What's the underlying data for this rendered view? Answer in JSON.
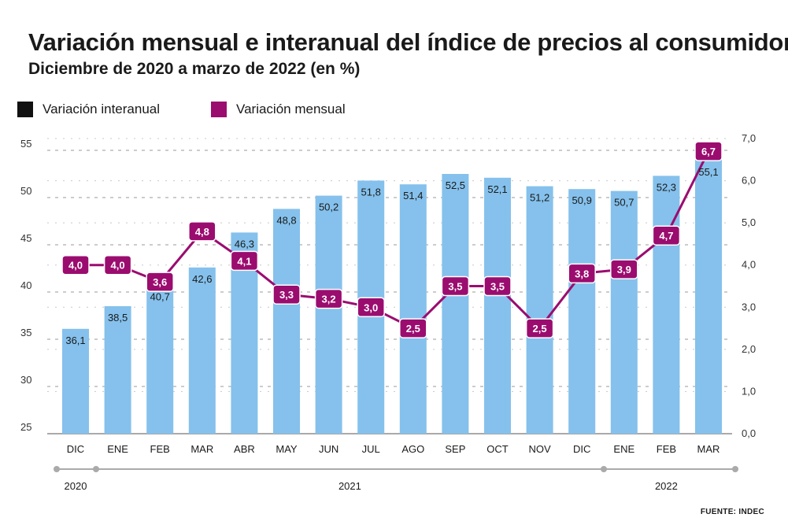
{
  "title": "Variación mensual e interanual del índice de precios al consumidor",
  "subtitle": "Diciembre de 2020 a marzo de 2022 (en %)",
  "legend": [
    {
      "label": "Variación interanual",
      "color": "#111111"
    },
    {
      "label": "Variación mensual",
      "color": "#9b0c6f"
    }
  ],
  "source": "FUENTE: INDEC",
  "colors": {
    "bar": "#85c1ec",
    "line": "#9b0c6f",
    "grid": "#9a9a9a",
    "timeline": "#aaaaaa"
  },
  "chart_data": {
    "type": "bar+line",
    "categories": [
      "DIC",
      "ENE",
      "FEB",
      "MAR",
      "ABR",
      "MAY",
      "JUN",
      "JUL",
      "AGO",
      "SEP",
      "OCT",
      "NOV",
      "DIC",
      "ENE",
      "FEB",
      "MAR"
    ],
    "series": [
      {
        "name": "Variación interanual",
        "type": "bar",
        "axis": "left",
        "values": [
          36.1,
          38.5,
          40.7,
          42.6,
          46.3,
          48.8,
          50.2,
          51.8,
          51.4,
          52.5,
          52.1,
          51.2,
          50.9,
          50.7,
          52.3,
          55.1
        ],
        "labels": [
          "36,1",
          "38,5",
          "40,7",
          "42,6",
          "46,3",
          "48,8",
          "50,2",
          "51,8",
          "51,4",
          "52,5",
          "52,1",
          "51,2",
          "50,9",
          "50,7",
          "52,3",
          "55,1"
        ]
      },
      {
        "name": "Variación mensual",
        "type": "line",
        "axis": "right",
        "values": [
          4.0,
          4.0,
          3.6,
          4.8,
          4.1,
          3.3,
          3.2,
          3.0,
          2.5,
          3.5,
          3.5,
          2.5,
          3.8,
          3.9,
          4.7,
          6.7
        ],
        "labels": [
          "4,0",
          "4,0",
          "3,6",
          "4,8",
          "4,1",
          "3,3",
          "3,2",
          "3,0",
          "2,5",
          "3,5",
          "3,5",
          "2,5",
          "3,8",
          "3,9",
          "4,7",
          "6,7"
        ]
      }
    ],
    "y_left": {
      "range": [
        25,
        55
      ],
      "ticks": [
        "25",
        "30",
        "35",
        "40",
        "45",
        "50",
        "55"
      ]
    },
    "y_right": {
      "range": [
        0,
        7
      ],
      "ticks": [
        "0,0",
        "1,0",
        "2,0",
        "3,0",
        "4,0",
        "5,0",
        "6,0",
        "7,0"
      ]
    },
    "years": [
      {
        "label": "2020",
        "from": 0,
        "to": 0
      },
      {
        "label": "2021",
        "from": 1,
        "to": 12
      },
      {
        "label": "2022",
        "from": 13,
        "to": 15
      }
    ]
  }
}
